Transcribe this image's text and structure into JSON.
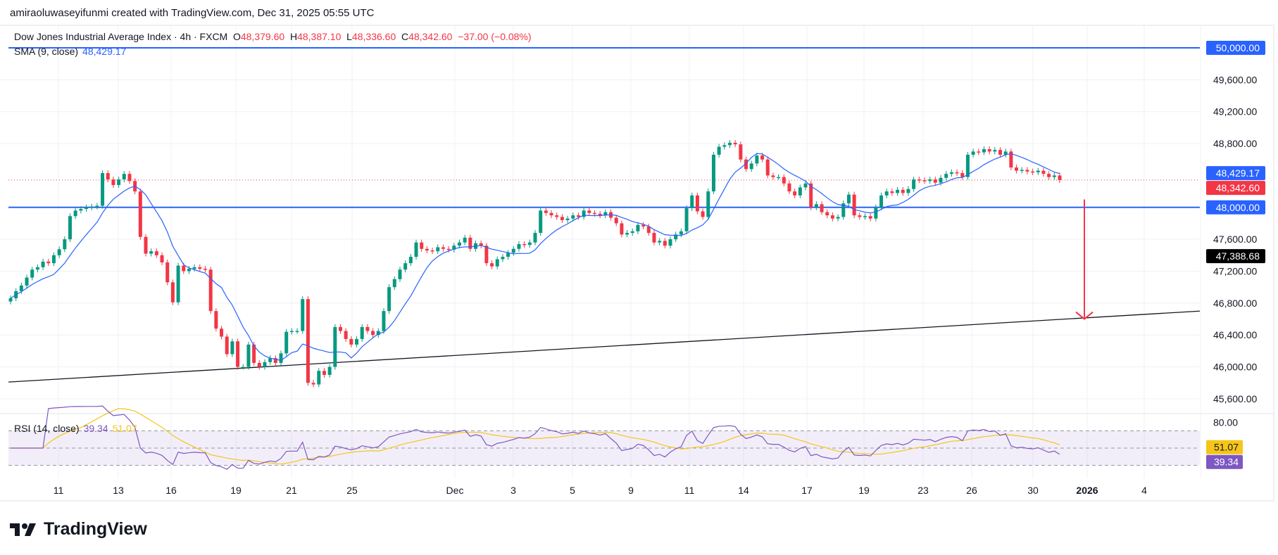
{
  "credit": "amiraoluwaseyifunmi created with TradingView.com, Dec 31, 2025 05:55 UTC",
  "legend": {
    "symbol": "Dow Jones Industrial Average Index · 4h · FXCM",
    "o_label": "O",
    "o": "48,379.60",
    "h_label": "H",
    "h": "48,387.10",
    "l_label": "L",
    "l": "48,336.60",
    "c_label": "C",
    "c": "48,342.60",
    "change": "−37.00 (−0.08%)",
    "sma_label": "SMA (9, close)",
    "sma_value": "48,429.17",
    "rsi_label": "RSI (14, close)",
    "rsi_value": "39.34",
    "rsi_ma_value": "51.07"
  },
  "logo": "TradingView",
  "colors": {
    "up": "#089981",
    "down": "#f23645",
    "level": "#2962ff",
    "sma": "#2962ff",
    "rsi": "#7e57c2",
    "rsi_ma": "#f5c518",
    "trendline": "#131722",
    "arrow": "#f23645"
  },
  "chart_data": [
    {
      "type": "candlestick",
      "timeframe": "4h",
      "ylim": [
        45400,
        50100
      ],
      "grid": true,
      "y_ticks": [
        "49,600.00",
        "49,200.00",
        "48,800.00",
        "47,600.00",
        "47,200.00",
        "46,800.00",
        "46,400.00",
        "46,000.00",
        "45,600.00"
      ],
      "y_tick_values": [
        49600,
        49200,
        48800,
        47600,
        47200,
        46800,
        46400,
        46000,
        45600
      ],
      "x_ticks": [
        "11",
        "13",
        "16",
        "19",
        "21",
        "25",
        "Dec",
        "3",
        "5",
        "9",
        "11",
        "14",
        "17",
        "19",
        "23",
        "26",
        "30",
        "2026",
        "4"
      ],
      "closes": [
        46860,
        46950,
        47020,
        47120,
        47220,
        47250,
        47320,
        47300,
        47400,
        47475,
        47600,
        47890,
        47960,
        47980,
        48000,
        48010,
        48020,
        48430,
        48350,
        48280,
        48350,
        48420,
        48330,
        48200,
        47630,
        47420,
        47450,
        47400,
        47310,
        47060,
        46810,
        47270,
        47200,
        47230,
        47250,
        47230,
        47220,
        46700,
        46480,
        46380,
        46160,
        46320,
        46000,
        46000,
        46280,
        46050,
        46000,
        46060,
        46110,
        46050,
        46170,
        46440,
        46450,
        46450,
        46850,
        45800,
        45780,
        45950,
        45900,
        46000,
        46500,
        46450,
        46350,
        46280,
        46350,
        46500,
        46450,
        46400,
        46450,
        46700,
        47000,
        47100,
        47220,
        47300,
        47380,
        47560,
        47480,
        47460,
        47450,
        47500,
        47480,
        47470,
        47520,
        47560,
        47620,
        47480,
        47550,
        47520,
        47300,
        47260,
        47350,
        47380,
        47430,
        47480,
        47540,
        47530,
        47560,
        47680,
        47960,
        47930,
        47900,
        47880,
        47840,
        47860,
        47900,
        47880,
        47960,
        47930,
        47920,
        47900,
        47940,
        47870,
        47800,
        47660,
        47680,
        47700,
        47780,
        47760,
        47680,
        47560,
        47580,
        47520,
        47600,
        47660,
        47700,
        47990,
        48150,
        47950,
        47880,
        48200,
        48660,
        48760,
        48780,
        48810,
        48790,
        48600,
        48480,
        48550,
        48650,
        48600,
        48400,
        48380,
        48380,
        48300,
        48200,
        48150,
        48250,
        48300,
        48000,
        48040,
        47940,
        47900,
        47860,
        47880,
        48050,
        48160,
        47900,
        47880,
        47890,
        47860,
        48000,
        48150,
        48200,
        48180,
        48220,
        48180,
        48230,
        48350,
        48340,
        48330,
        48350,
        48310,
        48370,
        48420,
        48440,
        48430,
        48380,
        48660,
        48700,
        48690,
        48730,
        48700,
        48720,
        48660,
        48700,
        48500,
        48460,
        48470,
        48450,
        48440,
        48460,
        48420,
        48380,
        48400,
        48342.6
      ],
      "sma_period": 9,
      "horizontal_levels": [
        {
          "value": 50000,
          "label": "50,000.00"
        },
        {
          "value": 48000,
          "label": "48,000.00"
        }
      ],
      "last_price": {
        "value": 48342.6,
        "label": "48,342.60"
      },
      "sma_last": {
        "value": 48429.17,
        "label": "48,429.17"
      },
      "marker": {
        "value": 47388.68,
        "label": "47,388.68"
      },
      "trendline": {
        "from": 45810,
        "to": 46700
      },
      "arrow": {
        "from": 48100,
        "to": 46600
      }
    },
    {
      "type": "line",
      "indicator": "RSI (14, close)",
      "y_ticks": [
        "80.00"
      ],
      "bands": [
        30,
        50,
        70
      ],
      "last_rsi": {
        "value": 39.34,
        "label": "39.34"
      },
      "last_ma": {
        "value": 51.07,
        "label": "51.07"
      }
    }
  ]
}
